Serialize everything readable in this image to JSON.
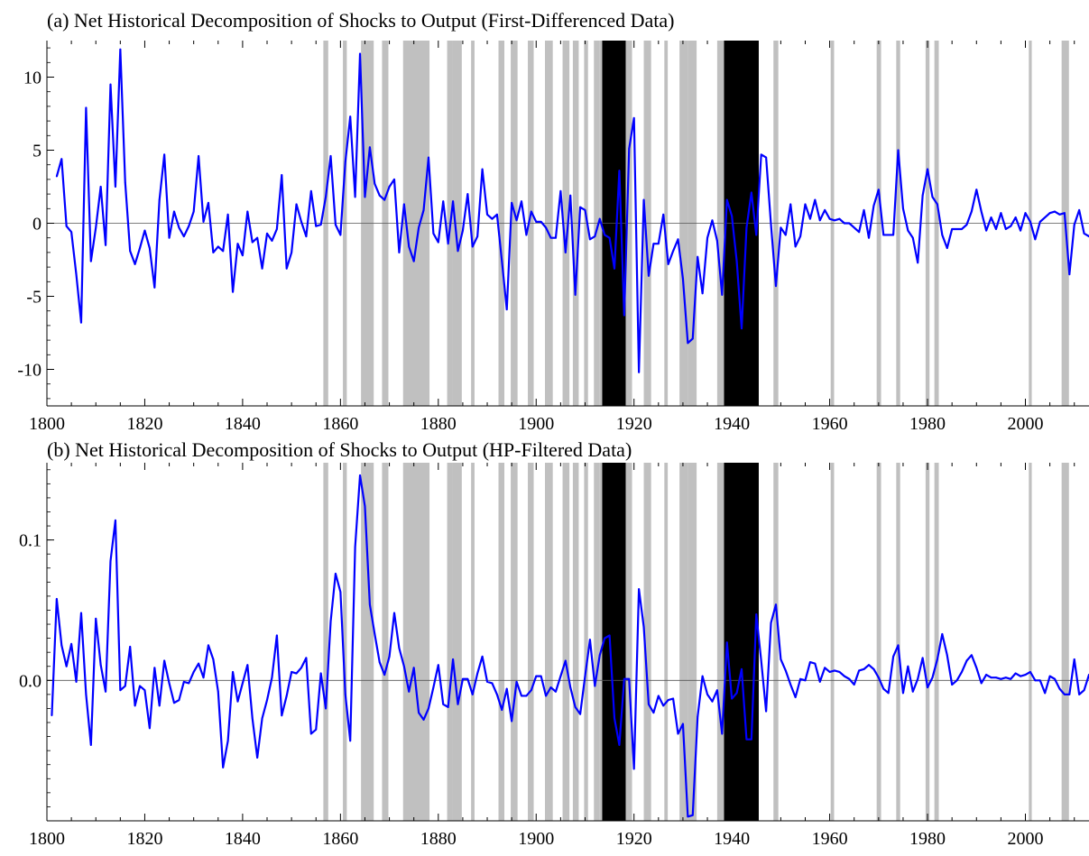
{
  "chart_data": [
    {
      "type": "line",
      "title": "(a) Net Historical Decomposition of Shocks to Output (First-Differenced Data)",
      "xlabel": "",
      "ylabel": "",
      "xlim": [
        1800,
        2013
      ],
      "ylim": [
        -12.5,
        12.5
      ],
      "x_ticks": [
        "1800",
        "1820",
        "1840",
        "1860",
        "1880",
        "1900",
        "1920",
        "1940",
        "1960",
        "1980",
        "2000"
      ],
      "y_ticks": [
        "10",
        "5",
        "0",
        "-5",
        "-10"
      ],
      "y_tick_values": [
        10,
        5,
        0,
        -5,
        -10
      ],
      "zero_line": true,
      "grid": false,
      "line_color": "#0000ff",
      "series": [
        {
          "x_start": 1802,
          "values": [
            3.2,
            4.4,
            -0.2,
            -0.6,
            -3.5,
            -6.8,
            7.9,
            -2.6,
            -0.3,
            2.5,
            -1.5,
            9.5,
            2.5,
            11.9,
            2.8,
            -1.9,
            -2.8,
            -1.7,
            -0.5,
            -1.7,
            -4.4,
            1.6,
            4.7,
            -1.0,
            0.8,
            -0.3,
            -0.9,
            -0.2,
            0.8,
            4.6,
            0.1,
            1.4,
            -2.0,
            -1.6,
            -1.9,
            0.6,
            -4.7,
            -1.4,
            -2.2,
            0.8,
            -1.3,
            -1.0,
            -3.1,
            -0.7,
            -1.2,
            -0.4,
            3.3,
            -3.1,
            -2.0,
            1.3,
            0.1,
            -0.9,
            2.2,
            -0.2,
            -0.1,
            1.8,
            4.6,
            -0.1,
            -0.8,
            4.2,
            7.3,
            1.8,
            11.6,
            1.8,
            5.2,
            2.7,
            1.9,
            1.6,
            2.5,
            3.0,
            -2.0,
            1.3,
            -1.6,
            -2.6,
            -0.3,
            0.9,
            4.5,
            -0.7,
            -1.3,
            1.5,
            -1.4,
            1.5,
            -1.9,
            -0.5,
            2.0,
            -1.6,
            -0.9,
            3.7,
            0.6,
            0.3,
            0.6,
            -2.6,
            -5.9,
            1.4,
            0.2,
            1.5,
            -0.8,
            0.8,
            0.1,
            0.1,
            -0.3,
            -1.0,
            -1.0,
            2.2,
            -2.0,
            1.9,
            -4.9,
            1.1,
            0.9,
            -1.1,
            -0.9,
            0.3,
            -0.8,
            -1.0,
            -3.1,
            3.6,
            -6.3,
            5.1,
            7.2,
            -10.2,
            1.6,
            -3.6,
            -1.4,
            -1.4,
            0.6,
            -2.8,
            -1.9,
            -1.1,
            -3.8,
            -8.2,
            -7.9,
            -2.3,
            -4.8,
            -1.0,
            0.2,
            -1.2,
            -4.9,
            1.6,
            0.5,
            -2.6,
            -7.2,
            -0.3,
            2.1,
            -0.8,
            4.7,
            4.5,
            -0.1,
            -4.3,
            -0.3,
            -0.8,
            1.3,
            -1.6,
            -0.9,
            1.3,
            0.3,
            1.6,
            0.2,
            0.9,
            0.3,
            0.2,
            0.3,
            0.0,
            0.0,
            -0.3,
            -0.6,
            0.9,
            -1.0,
            1.2,
            2.3,
            -0.8,
            -0.8,
            -0.8,
            5.0,
            1.0,
            -0.5,
            -1.0,
            -2.7,
            1.9,
            3.7,
            1.8,
            1.3,
            -0.8,
            -1.7,
            -0.4,
            -0.4,
            -0.4,
            -0.1,
            0.8,
            2.3,
            0.8,
            -0.5,
            0.4,
            -0.4,
            0.7,
            -0.4,
            -0.2,
            0.4,
            -0.5,
            0.7,
            0.1,
            -1.1,
            0.1,
            0.4,
            0.7,
            0.8,
            0.6,
            0.7,
            -3.5,
            -0.1,
            0.9,
            -0.7,
            -0.9,
            -0.5
          ]
        }
      ]
    },
    {
      "type": "line",
      "title": "(b) Net Historical Decomposition of Shocks to Output (HP-Filtered Data)",
      "xlabel": "",
      "ylabel": "",
      "xlim": [
        1800,
        2013
      ],
      "ylim": [
        -0.1,
        0.155
      ],
      "x_ticks": [
        "1800",
        "1820",
        "1840",
        "1860",
        "1880",
        "1900",
        "1920",
        "1940",
        "1960",
        "1980",
        "2000"
      ],
      "y_ticks": [
        "0.1",
        "0.0"
      ],
      "y_tick_values": [
        0.1,
        0.0
      ],
      "zero_line": true,
      "grid": false,
      "line_color": "#0000ff",
      "series": [
        {
          "x_start": 1801,
          "values": [
            -0.025,
            0.058,
            0.025,
            0.01,
            0.026,
            -0.001,
            0.048,
            -0.01,
            -0.046,
            0.044,
            0.011,
            -0.008,
            0.085,
            0.114,
            -0.007,
            -0.004,
            0.024,
            -0.018,
            -0.004,
            -0.007,
            -0.034,
            0.009,
            -0.018,
            0.014,
            -0.002,
            -0.016,
            -0.014,
            -0.001,
            -0.002,
            0.006,
            0.012,
            0.002,
            0.025,
            0.015,
            -0.008,
            -0.062,
            -0.043,
            0.006,
            -0.015,
            -0.002,
            0.011,
            -0.027,
            -0.055,
            -0.027,
            -0.014,
            0.002,
            0.032,
            -0.025,
            -0.011,
            0.006,
            0.005,
            0.009,
            0.016,
            -0.038,
            -0.035,
            0.005,
            -0.02,
            0.042,
            0.076,
            0.063,
            -0.01,
            -0.043,
            0.095,
            0.146,
            0.124,
            0.054,
            0.033,
            0.013,
            0.004,
            0.017,
            0.048,
            0.023,
            0.01,
            -0.008,
            0.009,
            -0.023,
            -0.028,
            -0.02,
            -0.005,
            0.011,
            -0.017,
            -0.019,
            0.015,
            -0.017,
            0.001,
            0.001,
            -0.01,
            0.005,
            0.017,
            -0.001,
            -0.002,
            -0.01,
            -0.021,
            -0.006,
            -0.029,
            -0.001,
            -0.011,
            -0.011,
            -0.007,
            0.003,
            0.003,
            -0.011,
            -0.005,
            -0.008,
            0.003,
            0.014,
            -0.005,
            -0.019,
            -0.024,
            0.003,
            0.029,
            -0.004,
            0.018,
            0.03,
            0.032,
            -0.027,
            -0.046,
            0.001,
            0.001,
            -0.063,
            0.065,
            0.038,
            -0.017,
            -0.023,
            -0.011,
            -0.018,
            -0.014,
            -0.013,
            -0.038,
            -0.031,
            -0.097,
            -0.096,
            -0.026,
            0.003,
            -0.01,
            -0.015,
            -0.007,
            -0.038,
            0.027,
            -0.013,
            -0.009,
            0.008,
            -0.042,
            -0.042,
            0.047,
            0.014,
            -0.022,
            0.041,
            0.054,
            0.015,
            0.007,
            -0.003,
            -0.012,
            0.001,
            0.0,
            0.013,
            0.012,
            -0.001,
            0.009,
            0.006,
            0.007,
            0.006,
            0.003,
            0.001,
            -0.003,
            0.007,
            0.008,
            0.011,
            0.008,
            0.002,
            -0.006,
            -0.009,
            0.017,
            0.025,
            -0.009,
            0.01,
            -0.008,
            0.001,
            0.016,
            -0.005,
            0.002,
            0.015,
            0.033,
            0.018,
            -0.003,
            0.0,
            0.006,
            0.014,
            0.018,
            0.009,
            -0.002,
            0.004,
            0.002,
            0.002,
            0.001,
            0.002,
            0.001,
            0.005,
            0.003,
            0.004,
            0.006,
            0.0,
            0.0,
            -0.009,
            0.003,
            0.001,
            -0.006,
            -0.01,
            -0.01,
            0.015,
            -0.01,
            -0.007,
            0.004,
            0.005,
            0.001,
            0.0
          ]
        }
      ]
    }
  ],
  "shading": {
    "gray_color": "#c0c0c0",
    "black_color": "#000000",
    "gray_bands": [
      [
        1856.5,
        1857.5
      ],
      [
        1860.5,
        1861.3
      ],
      [
        1864.2,
        1866.8
      ],
      [
        1868.5,
        1869.8
      ],
      [
        1872.8,
        1878.2
      ],
      [
        1881.8,
        1882.9
      ],
      [
        1882.9,
        1884.8
      ],
      [
        1886.7,
        1887.4
      ],
      [
        1892.3,
        1893.5
      ],
      [
        1894.8,
        1896.2
      ],
      [
        1898.3,
        1899.5
      ],
      [
        1901.8,
        1903.4
      ],
      [
        1905.4,
        1906.8
      ],
      [
        1907.5,
        1908.7
      ],
      [
        1909.8,
        1910.6
      ],
      [
        1911.8,
        1912.9
      ],
      [
        1912.9,
        1913.6
      ],
      [
        1918.3,
        1919.6
      ],
      [
        1922.0,
        1923.5
      ],
      [
        1926.2,
        1926.9
      ],
      [
        1929.3,
        1931.0
      ],
      [
        1931.0,
        1932.8
      ],
      [
        1937.0,
        1938.4
      ],
      [
        1948.5,
        1949.5
      ],
      [
        1960.2,
        1960.9
      ],
      [
        1969.6,
        1970.5
      ],
      [
        1973.6,
        1974.4
      ],
      [
        1979.6,
        1980.4
      ],
      [
        1981.4,
        1982.3
      ],
      [
        2000.7,
        2001.3
      ],
      [
        2007.4,
        2008.9
      ]
    ],
    "black_bands": [
      [
        1913.5,
        1918.3
      ],
      [
        1938.4,
        1945.5
      ]
    ]
  }
}
